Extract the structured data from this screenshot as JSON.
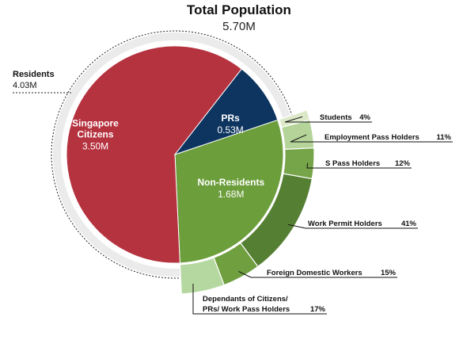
{
  "chart_data": {
    "type": "pie",
    "title": "Total Population",
    "subtitle": "5.70M",
    "residents": {
      "label": "Residents",
      "value_label": "4.03M",
      "value": 4.03
    },
    "slices": [
      {
        "name": "Singapore Citizens",
        "lines": [
          "Singapore",
          "Citizens"
        ],
        "value_label": "3.50M",
        "value": 3.5,
        "color": "#b5323f"
      },
      {
        "name": "PRs",
        "lines": [
          "PRs"
        ],
        "value_label": "0.53M",
        "value": 0.53,
        "color": "#0d3560"
      },
      {
        "name": "Non-Residents",
        "lines": [
          "Non-Residents"
        ],
        "value_label": "1.68M",
        "value": 1.68,
        "color": "#6c9e3c"
      }
    ],
    "breakdown": {
      "parent": "Non-Residents",
      "items": [
        {
          "lines": [
            "Students"
          ],
          "pct_label": "4%",
          "value": 4,
          "color": "#dbe9c8"
        },
        {
          "lines": [
            "Employment Pass Holders"
          ],
          "pct_label": "11%",
          "value": 11,
          "color": "#b5d49a"
        },
        {
          "lines": [
            "S Pass Holders"
          ],
          "pct_label": "12%",
          "value": 12,
          "color": "#76a448"
        },
        {
          "lines": [
            "Work Permit Holders"
          ],
          "pct_label": "41%",
          "value": 41,
          "color": "#557f32"
        },
        {
          "lines": [
            "Foreign Domestic Workers"
          ],
          "pct_label": "15%",
          "value": 15,
          "color": "#6f9f3f"
        },
        {
          "lines": [
            "Dependants of Citizens/",
            "PRs/ Work Pass Holders"
          ],
          "pct_label": "17%",
          "value": 17,
          "color": "#b5d8a0"
        }
      ]
    }
  }
}
